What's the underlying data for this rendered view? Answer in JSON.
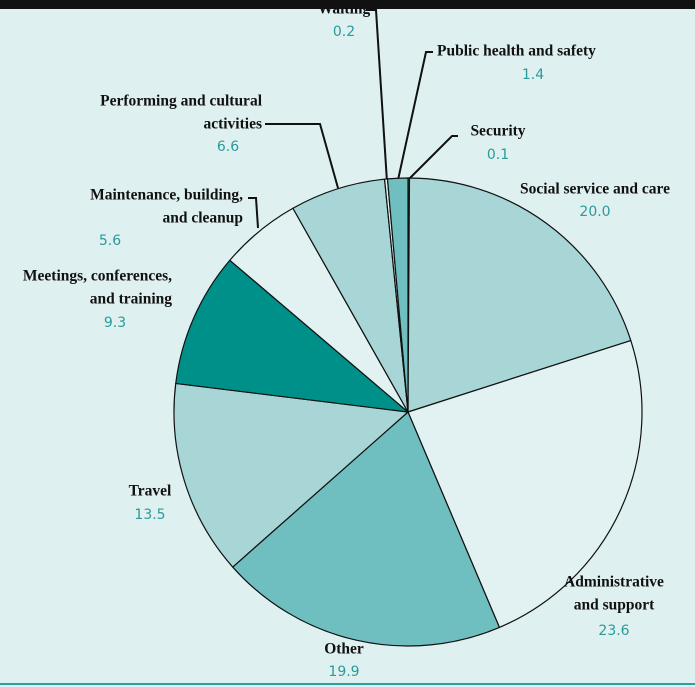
{
  "chart_data": {
    "type": "pie",
    "categories": [
      [
        "Security"
      ],
      [
        "Social service and care"
      ],
      [
        "Administrative",
        "and support"
      ],
      [
        "Other"
      ],
      [
        "Travel"
      ],
      [
        "Meetings, conferences,",
        "and training"
      ],
      [
        "Maintenance, building,",
        "and cleanup"
      ],
      [
        "Performing and cultural",
        "activities"
      ],
      [
        "Waiting"
      ],
      [
        "Public health and safety"
      ]
    ],
    "values": [
      0.1,
      20.0,
      23.6,
      19.9,
      13.5,
      9.3,
      5.6,
      6.6,
      0.2,
      1.4
    ],
    "value_labels": [
      "0.1",
      "20.0",
      "23.6",
      "19.9",
      "13.5",
      "9.3",
      "5.6",
      "6.6",
      "0.2",
      "1.4"
    ],
    "colors": [
      "#00908a",
      "#a8d5d5",
      "#e2f2f2",
      "#70bfc0",
      "#a8d5d5",
      "#00908a",
      "#e2f2f2",
      "#a8d5d5",
      "#e2f2f2",
      "#70bfc0"
    ]
  }
}
